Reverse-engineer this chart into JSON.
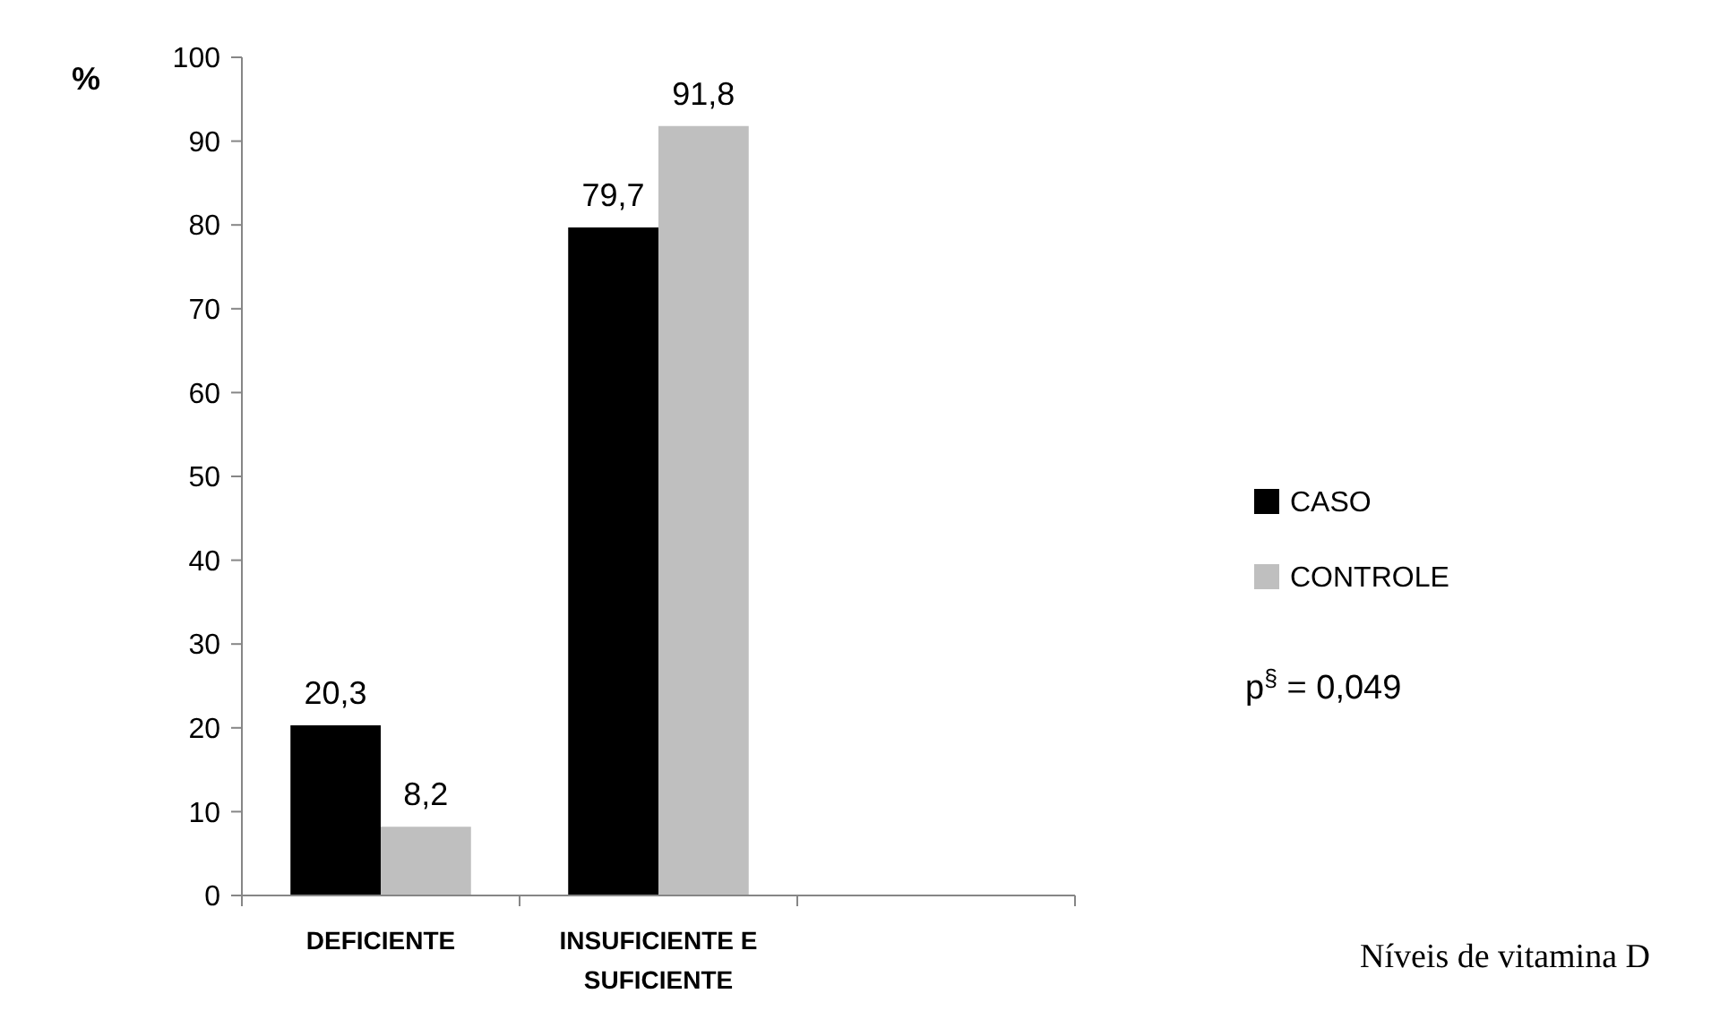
{
  "chart_data": {
    "type": "bar",
    "ylabel": "%",
    "categories": [
      "DEFICIENTE",
      "INSUFICIENTE E SUFICIENTE",
      null
    ],
    "series": [
      {
        "name": "CASO",
        "color": "#000000",
        "values": [
          20.3,
          79.7,
          null
        ],
        "value_labels": [
          "20,3",
          "79,7",
          null
        ]
      },
      {
        "name": "CONTROLE",
        "color": "#bfbfbf",
        "values": [
          8.2,
          91.8,
          null
        ],
        "value_labels": [
          "8,2",
          "91,8",
          null
        ]
      }
    ],
    "ylim": [
      0,
      100
    ],
    "yticks": [
      0,
      10,
      20,
      30,
      40,
      50,
      60,
      70,
      80,
      90,
      100
    ],
    "legend": "right",
    "grid": false,
    "annotations": [
      "p$^{§}$ = 0,049",
      "Níveis de vitamina D"
    ]
  }
}
